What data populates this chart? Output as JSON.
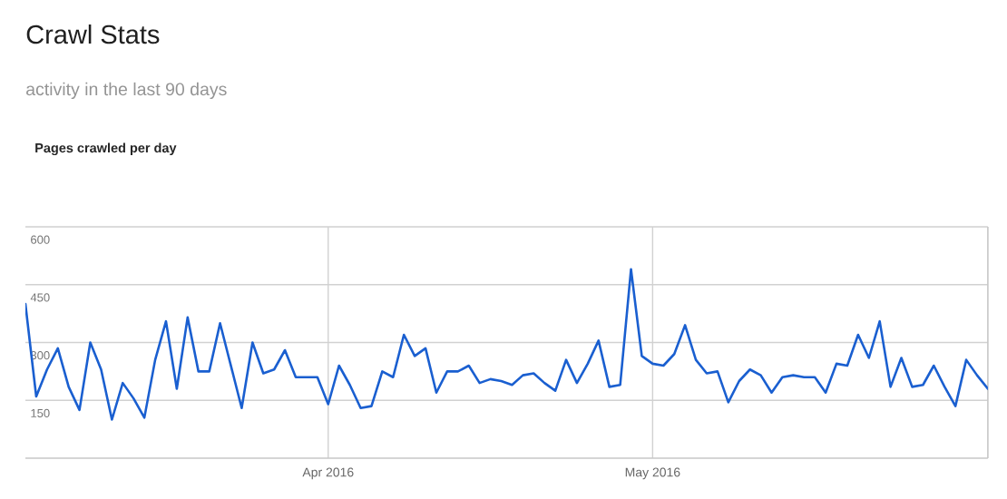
{
  "chart_data": {
    "type": "line",
    "title": "Crawl Stats",
    "subtitle": "activity in the last 90 days",
    "annotations": [
      "Pages crawled per day"
    ],
    "x": [
      "2016-03-04",
      "2016-03-05",
      "2016-03-06",
      "2016-03-07",
      "2016-03-08",
      "2016-03-09",
      "2016-03-10",
      "2016-03-11",
      "2016-03-12",
      "2016-03-13",
      "2016-03-14",
      "2016-03-15",
      "2016-03-16",
      "2016-03-17",
      "2016-03-18",
      "2016-03-19",
      "2016-03-20",
      "2016-03-21",
      "2016-03-22",
      "2016-03-23",
      "2016-03-24",
      "2016-03-25",
      "2016-03-26",
      "2016-03-27",
      "2016-03-28",
      "2016-03-29",
      "2016-03-30",
      "2016-03-31",
      "2016-04-01",
      "2016-04-02",
      "2016-04-03",
      "2016-04-04",
      "2016-04-05",
      "2016-04-06",
      "2016-04-07",
      "2016-04-08",
      "2016-04-09",
      "2016-04-10",
      "2016-04-11",
      "2016-04-12",
      "2016-04-13",
      "2016-04-14",
      "2016-04-15",
      "2016-04-16",
      "2016-04-17",
      "2016-04-18",
      "2016-04-19",
      "2016-04-20",
      "2016-04-21",
      "2016-04-22",
      "2016-04-23",
      "2016-04-24",
      "2016-04-25",
      "2016-04-26",
      "2016-04-27",
      "2016-04-28",
      "2016-04-29",
      "2016-04-30",
      "2016-05-01",
      "2016-05-02",
      "2016-05-03",
      "2016-05-04",
      "2016-05-05",
      "2016-05-06",
      "2016-05-07",
      "2016-05-08",
      "2016-05-09",
      "2016-05-10",
      "2016-05-11",
      "2016-05-12",
      "2016-05-13",
      "2016-05-14",
      "2016-05-15",
      "2016-05-16",
      "2016-05-17",
      "2016-05-18",
      "2016-05-19",
      "2016-05-20",
      "2016-05-21",
      "2016-05-22",
      "2016-05-23",
      "2016-05-24",
      "2016-05-25",
      "2016-05-26",
      "2016-05-27",
      "2016-05-28",
      "2016-05-29",
      "2016-05-30",
      "2016-05-31",
      "2016-06-01"
    ],
    "values": [
      400,
      160,
      230,
      285,
      185,
      125,
      300,
      230,
      100,
      195,
      155,
      105,
      255,
      355,
      180,
      365,
      225,
      225,
      350,
      240,
      130,
      300,
      220,
      230,
      280,
      210,
      210,
      210,
      140,
      240,
      190,
      130,
      135,
      225,
      210,
      320,
      265,
      285,
      170,
      225,
      225,
      240,
      195,
      205,
      200,
      190,
      215,
      220,
      195,
      175,
      255,
      195,
      245,
      305,
      185,
      190,
      490,
      265,
      245,
      240,
      270,
      345,
      255,
      220,
      225,
      145,
      200,
      230,
      215,
      170,
      210,
      215,
      210,
      210,
      170,
      245,
      240,
      320,
      260,
      355,
      185,
      260,
      185,
      190,
      240,
      185,
      135,
      255,
      215,
      180
    ],
    "color": "#1a5fd0",
    "xlim": [
      "2016-03-04",
      "2016-06-01"
    ],
    "xticks": [
      {
        "value": "2016-04-01",
        "label": "Apr 2016"
      },
      {
        "value": "2016-05-01",
        "label": "May 2016"
      }
    ],
    "ylim": [
      0,
      600
    ],
    "yticks": [
      150,
      300,
      450,
      600
    ],
    "grid": true
  }
}
